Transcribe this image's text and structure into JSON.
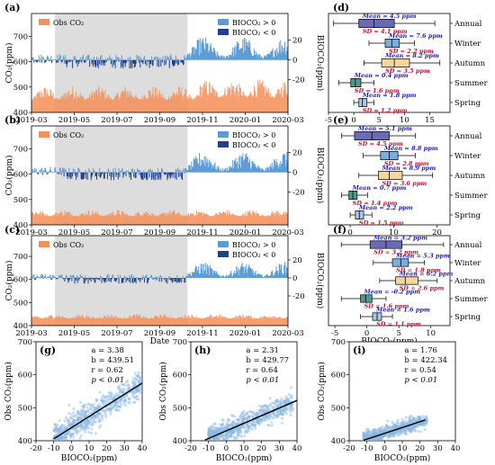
{
  "chart_data": {
    "timeseries": [
      {
        "type": "bar",
        "panel_label": "(a)",
        "legend": {
          "obs": "Obs CO₂",
          "pos": "BIOCO₂ > 0",
          "neg": "BIOCO₂ < 0"
        },
        "x_ticks": [
          "2019-03",
          "2019-05",
          "2019-07",
          "2019-09",
          "2019-11",
          "2020-01",
          "2020-03"
        ],
        "x_label": "",
        "y_left_label": "CO₂(ppm)",
        "y_left_ticks": [
          400,
          500,
          600,
          700
        ],
        "y_right_label": "BIOCO₂(ppm)",
        "y_right_ticks": [
          -20,
          0,
          20
        ],
        "shaded_period": [
          "2019-04",
          "2019-10"
        ],
        "obs_baseline": 420,
        "obs_amplitude": 85,
        "bio_amplitude": 24
      },
      {
        "type": "bar",
        "panel_label": "(b)",
        "legend": {
          "obs": "Obs CO₂",
          "pos": "BIOCO₂ > 0",
          "neg": "BIOCO₂ < 0"
        },
        "x_ticks": [
          "2019-03",
          "2019-05",
          "2019-07",
          "2019-09",
          "2019-11",
          "2020-01",
          "2020-03"
        ],
        "x_label": "",
        "y_left_label": "CO₂(ppm)",
        "y_left_ticks": [
          400,
          500,
          600,
          700
        ],
        "y_right_label": "BIOCO₂(ppm)",
        "y_right_ticks": [
          -20,
          0,
          20
        ],
        "shaded_period": [
          "2019-04",
          "2019-10"
        ],
        "obs_baseline": 420,
        "obs_amplitude": 40,
        "bio_amplitude": 22
      },
      {
        "type": "bar",
        "panel_label": "(c)",
        "legend": {
          "obs": "Obs CO₂",
          "pos": "BIOCO₂ > 0",
          "neg": "BIOCO₂ < 0"
        },
        "x_ticks": [
          "2019-03",
          "2019-05",
          "2019-07",
          "2019-09",
          "2019-11",
          "2020-01",
          "2020-03"
        ],
        "x_label": "Date",
        "y_left_label": "CO₂(ppm)",
        "y_left_ticks": [
          400,
          500,
          600,
          700
        ],
        "y_right_label": "BIOCO₂(ppm)",
        "y_right_ticks": [
          -20,
          0,
          20
        ],
        "shaded_period": [
          "2019-04",
          "2019-10"
        ],
        "obs_baseline": 420,
        "obs_amplitude": 30,
        "bio_amplitude": 18
      }
    ],
    "boxplots": [
      {
        "type": "box",
        "panel_label": "(d)",
        "x_ticks": [
          -5,
          0,
          5,
          10,
          15
        ],
        "x_range": [
          -5,
          19
        ],
        "x_label": "",
        "seasons": [
          {
            "name": "Annual",
            "mean": "Mean = 4.5 ppm",
            "sd": "SD = 4.1 ppm",
            "whisker": [
              -4,
              16
            ],
            "box": [
              1,
              8
            ],
            "median": 4,
            "color": "#6a6ab8"
          },
          {
            "name": "Winter",
            "mean": "Mean = 7.6 ppm",
            "sd": "SD = 2.2 ppm",
            "whisker": [
              3,
              12
            ],
            "box": [
              6.2,
              9
            ],
            "median": 7.5,
            "color": "#7aaee0"
          },
          {
            "name": "Autumn",
            "mean": "Mean = 8.2 ppm",
            "sd": "SD = 3.5 ppm",
            "whisker": [
              2,
              17
            ],
            "box": [
              5.5,
              11
            ],
            "median": 8,
            "color": "#f5d59a"
          },
          {
            "name": "Summer",
            "mean": "Mean = 0.4 ppm",
            "sd": "SD = 1.6 ppm",
            "whisker": [
              -3,
              4
            ],
            "box": [
              -0.6,
              1.4
            ],
            "median": 0.3,
            "color": "#4e9a8c"
          },
          {
            "name": "Spring",
            "mean": "Mean = 1.8 ppm",
            "sd": "SD = 1.2 ppm",
            "whisker": [
              0,
              4
            ],
            "box": [
              1,
              2.6
            ],
            "median": 1.7,
            "color": "#a9c6e8"
          }
        ]
      },
      {
        "type": "box",
        "panel_label": "(e)",
        "x_ticks": [
          0,
          10,
          20
        ],
        "x_range": [
          -5,
          23
        ],
        "x_label": "",
        "seasons": [
          {
            "name": "Annual",
            "mean": "Mean = 5.1 ppm",
            "sd": "SD = 4.5 ppm",
            "whisker": [
              -2,
              15
            ],
            "box": [
              1,
              9
            ],
            "median": 5,
            "color": "#6a6ab8"
          },
          {
            "name": "Winter",
            "mean": "Mean = 8.8 ppm",
            "sd": "SD = 2.8 ppm",
            "whisker": [
              3,
              15
            ],
            "box": [
              7,
              11
            ],
            "median": 9,
            "color": "#7aaee0"
          },
          {
            "name": "Autumn",
            "mean": "Mean = 8.9 ppm",
            "sd": "SD = 3.6 ppm",
            "whisker": [
              2,
              19
            ],
            "box": [
              6.5,
              12
            ],
            "median": 9,
            "color": "#f5d59a"
          },
          {
            "name": "Summer",
            "mean": "Mean = 0.7 ppm",
            "sd": "SD = 1.4 ppm",
            "whisker": [
              -2,
              4
            ],
            "box": [
              -0.3,
              1.6
            ],
            "median": 0.6,
            "color": "#4e9a8c"
          },
          {
            "name": "Spring",
            "mean": "Mean = 2.2 ppm",
            "sd": "SD = 1.5 ppm",
            "whisker": [
              0,
              5
            ],
            "box": [
              1.2,
              3.1
            ],
            "median": 2.1,
            "color": "#a9c6e8"
          }
        ]
      },
      {
        "type": "box",
        "panel_label": "(f)",
        "x_ticks": [
          -5,
          0,
          5,
          10
        ],
        "x_range": [
          -6,
          13
        ],
        "x_label": "BIOCO₂(ppm)",
        "seasons": [
          {
            "name": "Annual",
            "mean": "Mean = 3.2 ppm",
            "sd": "SD = 3.2 ppm",
            "whisker": [
              -4,
              12
            ],
            "box": [
              0.5,
              5.5
            ],
            "median": 3,
            "color": "#6a6ab8"
          },
          {
            "name": "Winter",
            "mean": "Mean = 5.3 ppm",
            "sd": "SD = 1.8 ppm",
            "whisker": [
              1,
              9
            ],
            "box": [
              4,
              6.5
            ],
            "median": 5.3,
            "color": "#7aaee0"
          },
          {
            "name": "Autumn",
            "mean": "Mean = 6.2 ppm",
            "sd": "SD = 2.6 ppm",
            "whisker": [
              2,
              11
            ],
            "box": [
              4.5,
              8
            ],
            "median": 6,
            "color": "#f5d59a"
          },
          {
            "name": "Summer",
            "mean": "Mean = -0.2 ppm",
            "sd": "SD = 1.6 ppm",
            "whisker": [
              -4,
              3
            ],
            "box": [
              -1,
              0.8
            ],
            "median": -0.2,
            "color": "#4e9a8c"
          },
          {
            "name": "Spring",
            "mean": "Mean = 1.6 ppm",
            "sd": "SD = 1.1 ppm",
            "whisker": [
              -1,
              4
            ],
            "box": [
              0.9,
              2.3
            ],
            "median": 1.6,
            "color": "#a9c6e8"
          }
        ]
      }
    ],
    "scatters": [
      {
        "type": "scatter",
        "panel_label": "(g)",
        "stats": [
          "a = 3.38",
          "b = 439.51",
          "r = 0.62",
          "p < 0.01"
        ],
        "slope": 3.38,
        "intercept": 439.51,
        "fit_x": [
          -10,
          40
        ],
        "x_ticks": [
          -20,
          -10,
          0,
          10,
          20,
          30,
          40
        ],
        "x_range": [
          -20,
          40
        ],
        "y_ticks": [
          400,
          500,
          600,
          700
        ],
        "y_range": [
          400,
          700
        ],
        "x_label": "BIOCO₂(ppm)",
        "y_label": "Obs CO₂(ppm)",
        "cloud_x": [
          -10,
          40
        ],
        "spread": 38
      },
      {
        "type": "scatter",
        "panel_label": "(h)",
        "stats": [
          "a = 2.31",
          "b = 429.77",
          "r = 0.64",
          "p < 0.01"
        ],
        "slope": 2.31,
        "intercept": 429.77,
        "fit_x": [
          -12,
          40
        ],
        "x_ticks": [
          -20,
          -10,
          0,
          10,
          20,
          30,
          40
        ],
        "x_range": [
          -20,
          40
        ],
        "y_ticks": [
          400,
          500,
          600,
          700
        ],
        "y_range": [
          400,
          700
        ],
        "x_label": "BIOCO₂(ppm)",
        "y_label": "Obs CO₂(ppm)",
        "cloud_x": [
          -10,
          38
        ],
        "spread": 30
      },
      {
        "type": "scatter",
        "panel_label": "(i)",
        "stats": [
          "a = 1.76",
          "b = 422.34",
          "r = 0.54",
          "p < 0.01"
        ],
        "slope": 1.76,
        "intercept": 422.34,
        "fit_x": [
          -12,
          23
        ],
        "x_ticks": [
          -20,
          -10,
          0,
          10,
          20,
          30,
          40
        ],
        "x_range": [
          -20,
          40
        ],
        "y_ticks": [
          400,
          500,
          600,
          700
        ],
        "y_range": [
          400,
          700
        ],
        "x_label": "BIOCO₂(ppm)",
        "y_label": "Obs CO₂(ppm)",
        "cloud_x": [
          -12,
          24
        ],
        "spread": 20
      }
    ]
  },
  "colors": {
    "obs": "#f4915a",
    "pos": "#5b9bd5",
    "neg": "#1f3f8f",
    "shade": "#d9d9d9",
    "mean_text": "#1a1acc",
    "sd_text": "#c8102e",
    "scatter": "#8cb8e0",
    "fit": "#000000"
  }
}
